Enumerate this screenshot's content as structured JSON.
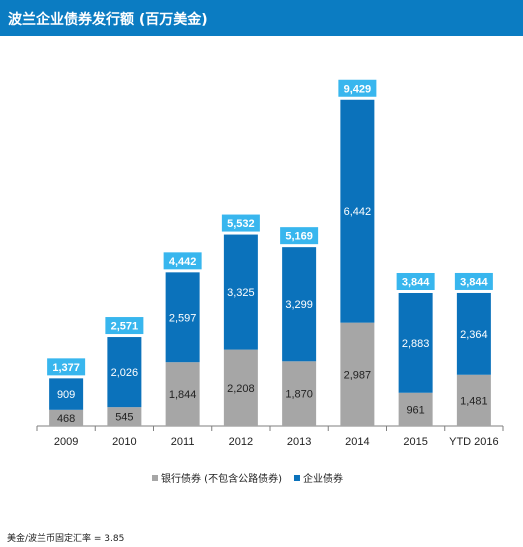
{
  "chart_data": {
    "type": "bar",
    "stacked": true,
    "title": "波兰企业债券发行额 (百万美金)",
    "categories": [
      "2009",
      "2010",
      "2011",
      "2012",
      "2013",
      "2014",
      "2015",
      "YTD 2016"
    ],
    "series": [
      {
        "name": "银行债券 (不包含公路债券)",
        "color": "#a6a6a6",
        "values": [
          468,
          545,
          1844,
          2208,
          1870,
          2987,
          961,
          1481
        ]
      },
      {
        "name": "企业债券",
        "color": "#0b72bb",
        "values": [
          909,
          2026,
          2597,
          3325,
          3299,
          6442,
          2883,
          2364
        ]
      }
    ],
    "totals": [
      1377,
      2571,
      4442,
      5532,
      5169,
      9429,
      3844,
      3844
    ],
    "total_label_color": "#38b6ee",
    "ylim": [
      0,
      10000
    ],
    "grid": false,
    "legend_position": "bottom-center",
    "footnote": "美金/波兰币固定汇率 = 3.85"
  }
}
